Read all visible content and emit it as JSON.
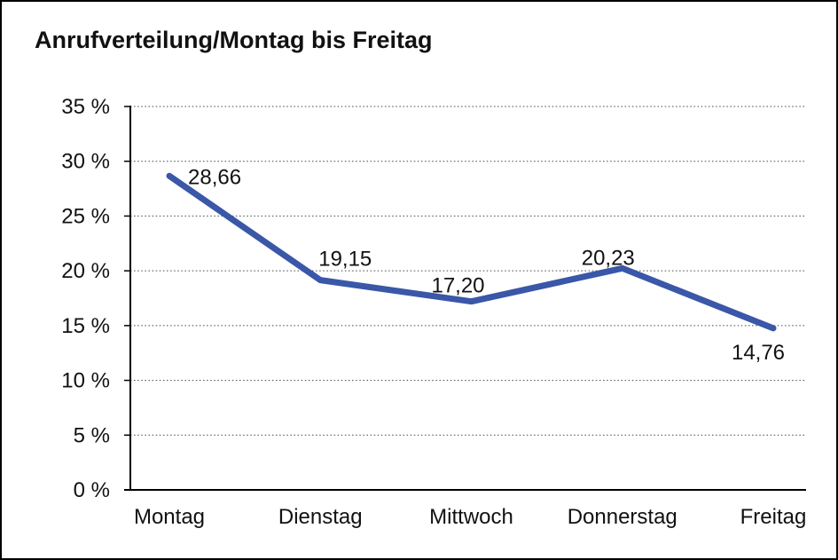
{
  "chart_data": {
    "type": "line",
    "title": "Anrufverteilung/Montag bis Freitag",
    "categories": [
      "Montag",
      "Dienstag",
      "Mittwoch",
      "Donnerstag",
      "Freitag"
    ],
    "values": [
      28.66,
      19.15,
      17.2,
      20.23,
      14.76
    ],
    "value_labels": [
      "28,66",
      "19,15",
      "17,20",
      "20,23",
      "14,76"
    ],
    "y_tick_labels": [
      "0 %",
      "5 %",
      "10 %",
      "15 %",
      "20 %",
      "25 %",
      "30 %",
      "35 %"
    ],
    "ylim": [
      0,
      35
    ],
    "y_tick_step": 5,
    "xlabel": "",
    "ylabel": "",
    "legend": "none",
    "grid": "horizontal-dotted",
    "line_color": "#3A57A8",
    "text_color": "#111111",
    "axis_color": "#000000",
    "gridline_color": "#444444",
    "background_color": "#FFFFFF",
    "border_color": "#000000"
  }
}
